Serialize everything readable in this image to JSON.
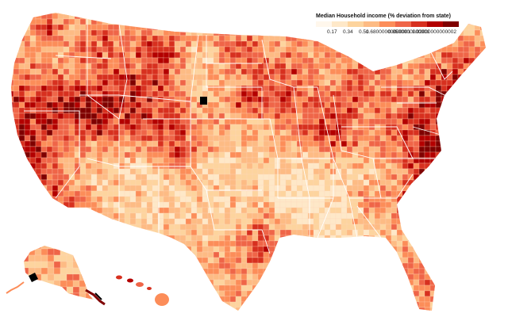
{
  "legend": {
    "title": "Median Household income (% deviation from state)",
    "tick_labels": [
      "0.17",
      "0.34",
      "0.51",
      "0.68000000000001",
      "0.8500000000001",
      "1.02000000000002"
    ],
    "colors": [
      "#fff7ec",
      "#fee8c8",
      "#fdd49e",
      "#fdbb84",
      "#fc8d59",
      "#ef6548",
      "#d7301f",
      "#b30000",
      "#7f0000"
    ]
  },
  "palette": {
    "land_base": "#fc8d59",
    "border": "#ffffff",
    "no_data": "#000000"
  }
}
